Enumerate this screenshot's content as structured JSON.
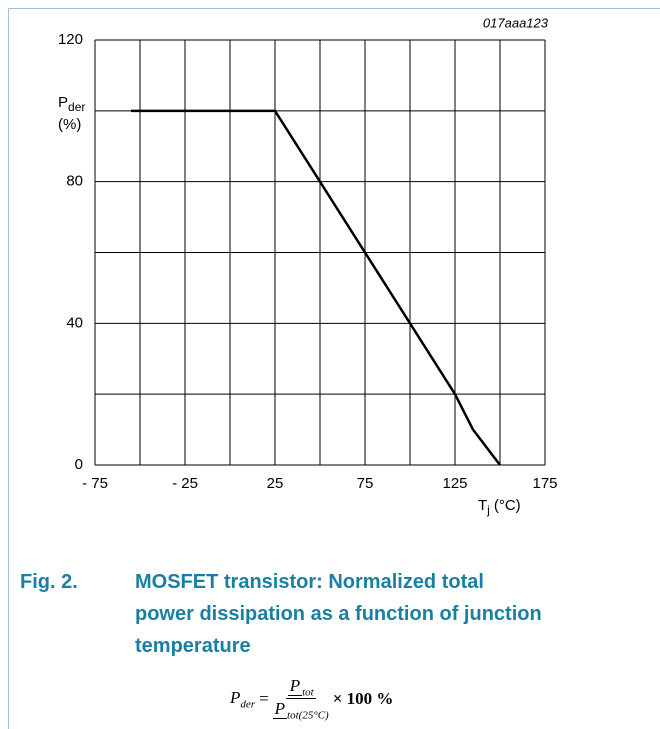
{
  "chart_data": {
    "type": "line",
    "code": "017aaa123",
    "y_label": {
      "main": "P",
      "sub": "der",
      "unit": "(%)"
    },
    "x_label": {
      "main": "T",
      "sub": "j",
      "unit": "(°C)"
    },
    "x": [
      -55,
      25,
      125,
      135,
      150
    ],
    "series": [
      {
        "color": "#000000",
        "values": [
          100,
          100,
          20,
          10,
          0
        ]
      }
    ],
    "xlim": [
      -75,
      175
    ],
    "xticks": [
      {
        "value": -75,
        "label": "- 75"
      },
      {
        "value": -25,
        "label": "- 25"
      },
      25,
      75,
      125,
      175
    ],
    "xminor": [
      -50,
      0,
      50,
      100,
      150
    ],
    "ylim": [
      0,
      120
    ],
    "yticks": [
      0,
      40,
      80,
      120
    ],
    "yminor": [
      20,
      60,
      100
    ],
    "grid": true
  },
  "caption": {
    "number": "Fig. 2.",
    "lines": [
      "MOSFET transistor: Normalized total",
      "power dissipation as a function of junction",
      "temperature"
    ]
  },
  "formula": {
    "lhs": "P",
    "lhs_sub": "der",
    "eq": "=",
    "num": "P",
    "num_sub": "tot",
    "den": "P",
    "den_sub": "tot(25°C)",
    "tail": "× 100  %"
  }
}
